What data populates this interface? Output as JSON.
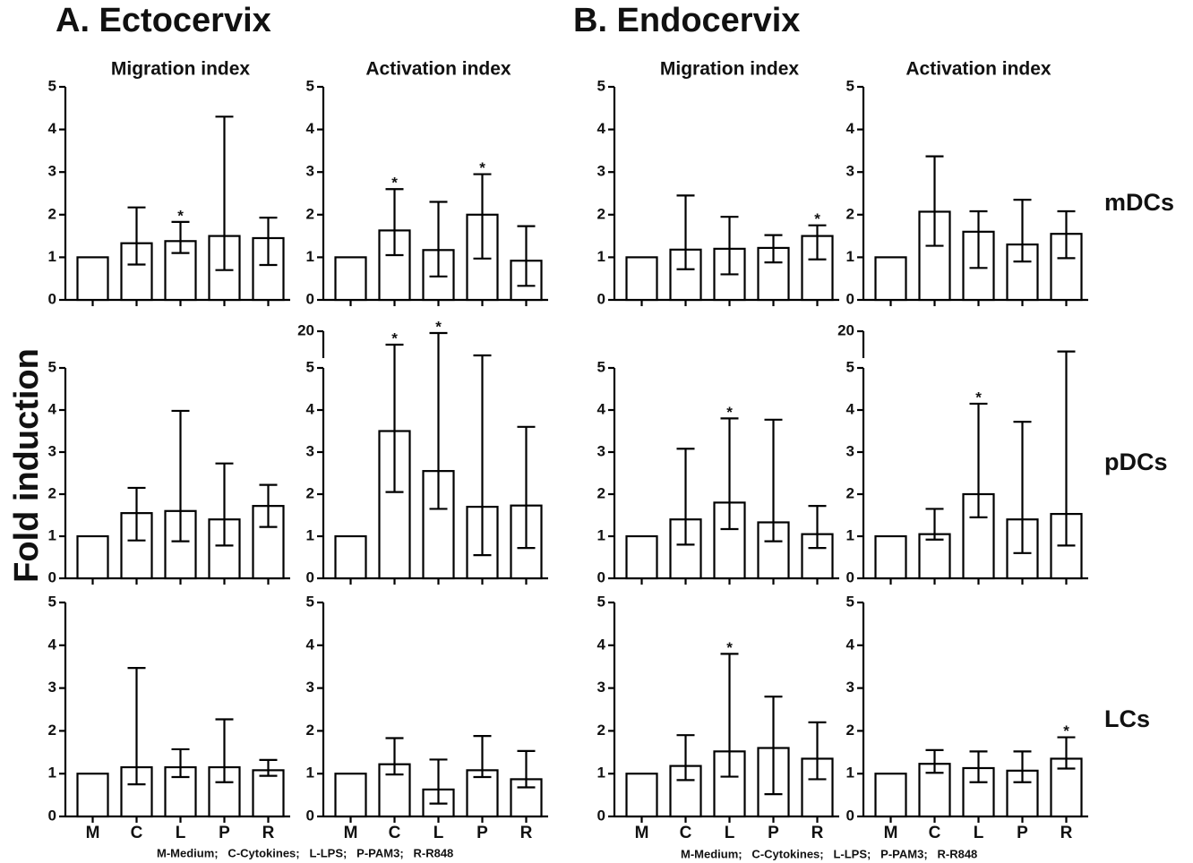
{
  "headings": [
    "A. Ectocervix",
    "B. Endocervix"
  ],
  "row_labels": [
    "mDCs",
    "pDCs",
    "LCs"
  ],
  "y_label": "Fold induction",
  "footnote": "M-Medium;   C-Cytokines;   L-LPS;   P-PAM3;   R-R848",
  "chart_data": [
    {
      "type": "bar",
      "title": "Migration index",
      "categories": [
        null,
        null,
        null,
        null,
        null
      ],
      "values": [
        1,
        1.33,
        1.38,
        1.5,
        1.45
      ],
      "lower": [
        null,
        0.83,
        1.1,
        0.7,
        0.82
      ],
      "upper": [
        null,
        2.17,
        1.83,
        4.3,
        1.93
      ],
      "significance": [
        null,
        null,
        "*",
        null,
        null
      ],
      "color": "#ffffff",
      "edge_color": "#000000",
      "ylim": [
        0,
        5
      ],
      "yticks": [
        0,
        1,
        2,
        3,
        4,
        5
      ]
    },
    {
      "type": "bar",
      "title": "Activation index",
      "categories": [
        null,
        null,
        null,
        null,
        null
      ],
      "values": [
        1,
        1.63,
        1.17,
        2.0,
        0.92
      ],
      "lower": [
        null,
        1.05,
        0.55,
        0.97,
        0.33
      ],
      "upper": [
        null,
        2.6,
        2.3,
        2.95,
        1.73
      ],
      "significance": [
        null,
        "*",
        null,
        "*",
        null
      ],
      "color": "#ffffff",
      "edge_color": "#000000",
      "ylim": [
        0,
        5
      ],
      "yticks": [
        0,
        1,
        2,
        3,
        4,
        5
      ]
    },
    {
      "type": "bar",
      "title": "Migration index",
      "categories": [
        null,
        null,
        null,
        null,
        null
      ],
      "values": [
        1,
        1.18,
        1.2,
        1.22,
        1.5
      ],
      "lower": [
        null,
        0.72,
        0.6,
        0.88,
        0.95
      ],
      "upper": [
        null,
        2.45,
        1.95,
        1.52,
        1.75
      ],
      "significance": [
        null,
        null,
        null,
        null,
        "*"
      ],
      "color": "#ffffff",
      "edge_color": "#000000",
      "ylim": [
        0,
        5
      ],
      "yticks": [
        0,
        1,
        2,
        3,
        4,
        5
      ]
    },
    {
      "type": "bar",
      "title": "Activation index",
      "categories": [
        null,
        null,
        null,
        null,
        null
      ],
      "values": [
        1,
        2.07,
        1.6,
        1.3,
        1.55
      ],
      "lower": [
        null,
        1.27,
        0.75,
        0.9,
        0.98
      ],
      "upper": [
        null,
        3.37,
        2.08,
        2.35,
        2.08
      ],
      "significance": [
        null,
        null,
        null,
        null,
        null
      ],
      "color": "#ffffff",
      "edge_color": "#000000",
      "ylim": [
        0,
        5
      ],
      "yticks": [
        0,
        1,
        2,
        3,
        4,
        5
      ]
    },
    {
      "type": "bar",
      "categories": [
        null,
        null,
        null,
        null,
        null
      ],
      "values": [
        1,
        1.55,
        1.6,
        1.4,
        1.72
      ],
      "lower": [
        null,
        0.9,
        0.88,
        0.78,
        1.22
      ],
      "upper": [
        null,
        2.15,
        3.98,
        2.73,
        2.22
      ],
      "significance": [
        null,
        null,
        null,
        null,
        null
      ],
      "color": "#ffffff",
      "edge_color": "#000000",
      "ylim": [
        0,
        5
      ],
      "yticks": [
        0,
        1,
        2,
        3,
        4,
        5
      ]
    },
    {
      "type": "bar",
      "categories": [
        null,
        null,
        null,
        null,
        null
      ],
      "values": [
        1,
        3.5,
        2.55,
        1.7,
        1.73
      ],
      "lower": [
        null,
        2.05,
        1.65,
        0.55,
        0.72
      ],
      "upper": [
        null,
        12.5,
        19,
        6.5,
        3.6
      ],
      "significance": [
        null,
        "*",
        "*",
        null,
        null
      ],
      "color": "#ffffff",
      "edge_color": "#000000",
      "ylim": [
        0,
        5
      ],
      "yticks": [
        0,
        1,
        2,
        3,
        4,
        5
      ],
      "ylim_upper": [
        5,
        20
      ],
      "yticks_upper": [
        20
      ]
    },
    {
      "type": "bar",
      "categories": [
        null,
        null,
        null,
        null,
        null
      ],
      "values": [
        1,
        1.4,
        1.8,
        1.33,
        1.05
      ],
      "lower": [
        null,
        0.8,
        1.17,
        0.88,
        0.72
      ],
      "upper": [
        null,
        3.08,
        3.8,
        3.77,
        1.72
      ],
      "significance": [
        null,
        null,
        "*",
        null,
        null
      ],
      "color": "#ffffff",
      "edge_color": "#000000",
      "ylim": [
        0,
        5
      ],
      "yticks": [
        0,
        1,
        2,
        3,
        4,
        5
      ]
    },
    {
      "type": "bar",
      "categories": [
        null,
        null,
        null,
        null,
        null
      ],
      "values": [
        1,
        1.05,
        2.0,
        1.4,
        1.53
      ],
      "lower": [
        null,
        0.92,
        1.45,
        0.6,
        0.78
      ],
      "upper": [
        null,
        1.65,
        4.15,
        3.72,
        8.7
      ],
      "significance": [
        null,
        null,
        "*",
        null,
        null
      ],
      "color": "#ffffff",
      "edge_color": "#000000",
      "ylim": [
        0,
        5
      ],
      "yticks": [
        0,
        1,
        2,
        3,
        4,
        5
      ],
      "ylim_upper": [
        5,
        20
      ],
      "yticks_upper": [
        20
      ]
    },
    {
      "type": "bar",
      "categories": [
        "M",
        "C",
        "L",
        "P",
        "R"
      ],
      "values": [
        1,
        1.15,
        1.15,
        1.15,
        1.08
      ],
      "lower": [
        null,
        0.75,
        0.92,
        0.8,
        0.95
      ],
      "upper": [
        null,
        3.47,
        1.57,
        2.27,
        1.32
      ],
      "significance": [
        null,
        null,
        null,
        null,
        null
      ],
      "color": "#ffffff",
      "edge_color": "#000000",
      "ylim": [
        0,
        5
      ],
      "yticks": [
        0,
        1,
        2,
        3,
        4,
        5
      ]
    },
    {
      "type": "bar",
      "categories": [
        "M",
        "C",
        "L",
        "P",
        "R"
      ],
      "values": [
        1,
        1.22,
        0.63,
        1.08,
        0.87
      ],
      "lower": [
        null,
        0.98,
        0.3,
        0.92,
        0.68
      ],
      "upper": [
        null,
        1.83,
        1.33,
        1.88,
        1.53
      ],
      "significance": [
        null,
        null,
        null,
        null,
        null
      ],
      "color": "#ffffff",
      "edge_color": "#000000",
      "ylim": [
        0,
        5
      ],
      "yticks": [
        0,
        1,
        2,
        3,
        4,
        5
      ]
    },
    {
      "type": "bar",
      "categories": [
        "M",
        "C",
        "L",
        "P",
        "R"
      ],
      "values": [
        1,
        1.18,
        1.52,
        1.6,
        1.35
      ],
      "lower": [
        null,
        0.85,
        0.93,
        0.52,
        0.87
      ],
      "upper": [
        null,
        1.9,
        3.8,
        2.8,
        2.2
      ],
      "significance": [
        null,
        null,
        "*",
        null,
        null
      ],
      "color": "#ffffff",
      "edge_color": "#000000",
      "ylim": [
        0,
        5
      ],
      "yticks": [
        0,
        1,
        2,
        3,
        4,
        5
      ]
    },
    {
      "type": "bar",
      "categories": [
        "M",
        "C",
        "L",
        "P",
        "R"
      ],
      "values": [
        1,
        1.23,
        1.13,
        1.07,
        1.35
      ],
      "lower": [
        null,
        1.02,
        0.8,
        0.8,
        1.12
      ],
      "upper": [
        null,
        1.55,
        1.52,
        1.52,
        1.85
      ],
      "significance": [
        null,
        null,
        null,
        null,
        "*"
      ],
      "color": "#ffffff",
      "edge_color": "#000000",
      "ylim": [
        0,
        5
      ],
      "yticks": [
        0,
        1,
        2,
        3,
        4,
        5
      ]
    }
  ]
}
